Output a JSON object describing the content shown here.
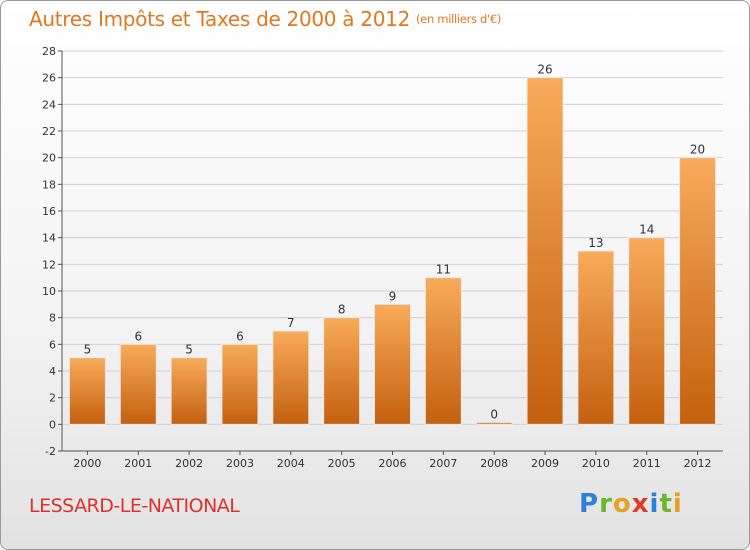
{
  "title": "Autres Impôts et Taxes de 2000 à 2012",
  "unit_note": "(en milliers d'€)",
  "location": "LESSARD-LE-NATIONAL",
  "logo": {
    "text": "Proxiti",
    "letters": [
      {
        "ch": "P",
        "color": "#2f7fd6"
      },
      {
        "ch": "r",
        "color": "#6bb62a"
      },
      {
        "ch": "o",
        "color": "#e8a020"
      },
      {
        "ch": "x",
        "color": "#e03a2a"
      },
      {
        "ch": "i",
        "color": "#2f7fd6"
      },
      {
        "ch": "t",
        "color": "#6bb62a"
      },
      {
        "ch": "i",
        "color": "#e8a020"
      }
    ]
  },
  "colors": {
    "title": "#e07820",
    "location": "#e0302a",
    "bar_top": "#f8ab5a",
    "bar_bottom": "#c4600f",
    "grid": "#d0d0d0"
  },
  "chart_data": {
    "type": "bar",
    "categories": [
      "2000",
      "2001",
      "2002",
      "2003",
      "2004",
      "2005",
      "2006",
      "2007",
      "2008",
      "2009",
      "2010",
      "2011",
      "2012"
    ],
    "values": [
      5,
      6,
      5,
      6,
      7,
      8,
      9,
      11,
      0,
      26,
      13,
      14,
      20
    ],
    "data_labels": [
      "5",
      "6",
      "5",
      "6",
      "7",
      "8",
      "9",
      "11",
      "0",
      "26",
      "13",
      "14",
      "20"
    ],
    "y_ticks": [
      -2,
      0,
      2,
      4,
      6,
      8,
      10,
      12,
      14,
      16,
      18,
      20,
      22,
      24,
      26,
      28
    ],
    "ylim": [
      -2,
      28
    ],
    "grid": true,
    "legend": "none"
  }
}
